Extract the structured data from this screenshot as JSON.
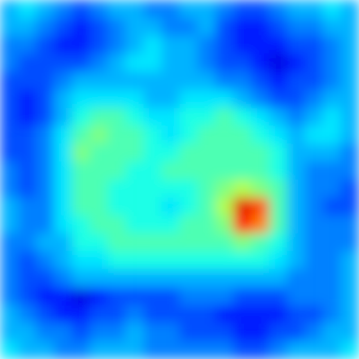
{
  "chart_data": {
    "type": "heatmap",
    "color": "jet",
    "color_range": [
      0,
      10
    ],
    "tick_labels": false,
    "cells": [
      [
        3,
        3.5,
        3,
        2.5,
        2,
        2.5,
        3,
        3,
        2.5,
        2.5,
        3,
        3,
        2.5,
        2,
        2,
        2.5,
        3,
        3,
        3.5,
        3
      ],
      [
        3,
        3,
        2.5,
        2,
        1.5,
        2,
        2.5,
        3,
        3,
        2.5,
        2.5,
        3,
        2,
        1.5,
        1.5,
        2,
        2.5,
        2.5,
        3,
        3
      ],
      [
        2.5,
        2.5,
        2,
        1.5,
        1.5,
        2,
        2.5,
        3,
        3.5,
        3,
        3,
        2.5,
        2,
        1.5,
        1.5,
        1.5,
        2,
        2,
        2.5,
        3
      ],
      [
        2.5,
        2,
        2,
        2,
        2,
        2.5,
        3,
        3.5,
        3.5,
        3,
        3,
        2.5,
        2,
        2,
        1.5,
        1,
        1.5,
        2,
        2.5,
        3
      ],
      [
        2,
        2,
        2,
        2.5,
        3,
        3,
        3,
        3,
        3,
        3,
        3,
        3,
        2.5,
        2.5,
        2,
        1.5,
        2,
        2,
        2.5,
        3
      ],
      [
        2,
        1.5,
        2,
        3,
        3.5,
        3.5,
        3.5,
        3.5,
        3,
        3,
        3.5,
        3.5,
        3.5,
        3,
        2.5,
        2,
        2,
        2.5,
        3,
        3
      ],
      [
        2,
        1.5,
        2,
        3,
        4,
        4.5,
        4.5,
        4,
        3.5,
        3.5,
        4,
        4,
        4.5,
        4,
        3.5,
        3,
        2.5,
        3,
        3.5,
        3
      ],
      [
        2,
        2,
        2.5,
        3.5,
        4.5,
        5,
        4.5,
        4.5,
        4,
        3.5,
        4,
        4.5,
        4.5,
        4.5,
        4,
        3.5,
        3,
        3.5,
        3.5,
        3
      ],
      [
        2,
        2,
        2.5,
        3.5,
        5,
        4.5,
        4.5,
        4.5,
        4,
        4,
        4.5,
        4.5,
        4.5,
        4.5,
        4.5,
        4,
        3,
        3,
        3,
        2.5
      ],
      [
        2.5,
        2,
        2.5,
        3.5,
        4.5,
        4.5,
        4.5,
        4,
        4,
        4.5,
        4.5,
        4.5,
        4.5,
        4.5,
        4.5,
        4,
        3,
        2.5,
        2.5,
        2.5
      ],
      [
        2.5,
        2,
        2.5,
        3.5,
        4.5,
        4.5,
        4,
        4,
        4,
        4,
        4,
        4.5,
        5,
        5.5,
        5,
        4.5,
        3,
        2.5,
        2.5,
        2
      ],
      [
        3,
        2.5,
        2.5,
        3.5,
        4.5,
        4.5,
        4,
        4,
        4,
        3.5,
        4,
        4.5,
        5.5,
        9,
        8,
        4.5,
        3,
        2.5,
        2,
        2
      ],
      [
        3,
        2.5,
        2.5,
        3.5,
        4,
        4.5,
        4.5,
        4,
        4,
        4,
        4.5,
        4.5,
        5,
        8.5,
        7.5,
        4.5,
        3,
        2.5,
        2.5,
        2.5
      ],
      [
        2.5,
        2.5,
        3,
        3,
        4,
        4,
        4.5,
        4.5,
        4.5,
        4.5,
        4.5,
        4.5,
        4.5,
        5,
        4.5,
        4,
        3,
        2.5,
        2.5,
        2.5
      ],
      [
        2.5,
        2,
        2.5,
        3,
        3.5,
        3.5,
        4,
        4,
        4,
        4,
        4,
        4,
        4,
        4,
        4,
        3.5,
        3,
        2.5,
        2.5,
        3
      ],
      [
        2.5,
        2,
        2,
        2.5,
        3,
        3,
        3,
        3,
        3,
        3,
        3,
        3,
        3,
        3,
        3,
        3,
        2.5,
        2.5,
        2.5,
        3
      ],
      [
        2.5,
        2,
        1.5,
        1.5,
        1,
        1.5,
        2,
        2,
        2,
        2,
        2.5,
        2.5,
        2.5,
        2,
        2,
        2,
        2.5,
        2.5,
        2.5,
        3
      ],
      [
        3,
        2.5,
        2,
        1.5,
        1.5,
        2,
        2,
        2.5,
        2,
        2,
        2,
        2,
        1.5,
        1.5,
        1.5,
        1.5,
        2,
        2,
        2.5,
        3
      ],
      [
        3,
        3,
        2.5,
        2.5,
        2,
        2.5,
        2.5,
        3,
        2.5,
        2.5,
        2,
        2,
        2,
        1.5,
        1.5,
        2,
        2,
        2.5,
        3,
        3
      ],
      [
        3.5,
        3,
        3,
        2.5,
        2.5,
        3,
        3,
        3,
        2.5,
        2.5,
        2.5,
        2.5,
        2.5,
        2,
        2,
        2.5,
        3,
        3,
        3,
        3.5
      ]
    ]
  }
}
